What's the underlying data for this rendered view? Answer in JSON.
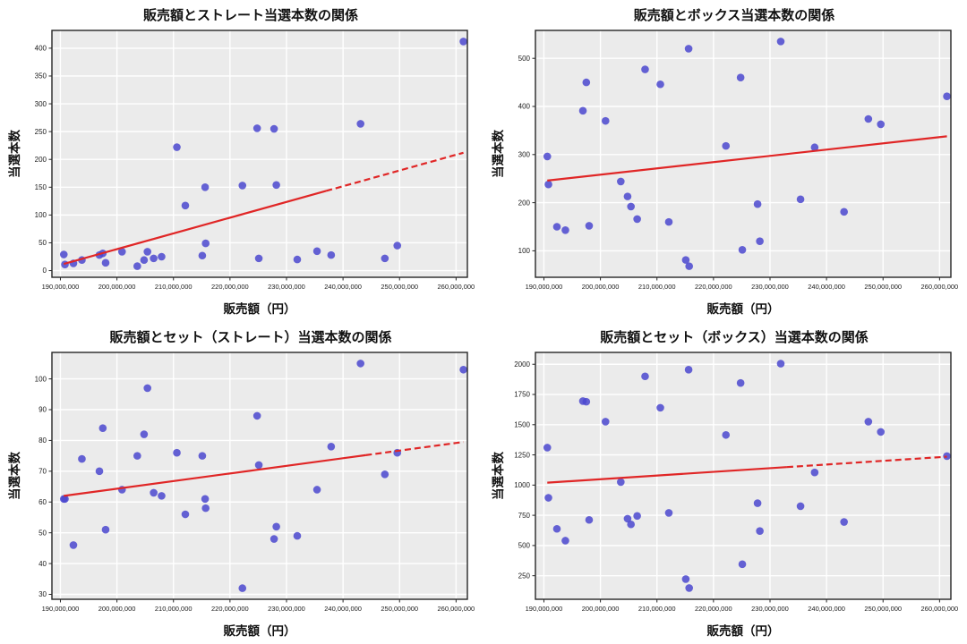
{
  "style": {
    "marker_color": "#4b48cf",
    "marker_opacity": 0.85,
    "line_color": "#e02626",
    "plot_bg": "#ebebeb",
    "grid_color": "#ffffff",
    "frame_color": "#262626",
    "text_color": "#1a1a1a"
  },
  "chart_data": [
    {
      "type": "scatter",
      "title": "販売額とストレート当選本数の関係",
      "xlabel": "販売額（円）",
      "ylabel": "当選本数",
      "x": [
        190600000,
        190800000,
        192300000,
        193800000,
        196900000,
        197500000,
        198000000,
        200900000,
        203600000,
        204800000,
        205400000,
        206500000,
        207900000,
        210600000,
        212100000,
        215100000,
        215600000,
        215700000,
        222200000,
        224800000,
        225100000,
        227800000,
        228200000,
        231900000,
        235400000,
        237900000,
        243100000,
        247400000,
        249600000,
        261300000
      ],
      "y": [
        29,
        11,
        13,
        19,
        28,
        31,
        14,
        34,
        8,
        19,
        34,
        22,
        25,
        222,
        117,
        27,
        150,
        49,
        153,
        256,
        22,
        255,
        154,
        20,
        35,
        28,
        264,
        22,
        45,
        412
      ],
      "xlim": [
        188500000,
        262000000
      ],
      "ylim": [
        -12,
        432
      ],
      "xticks": [
        190000000,
        200000000,
        210000000,
        220000000,
        230000000,
        240000000,
        250000000,
        260000000
      ],
      "yticks": [
        0,
        50,
        100,
        150,
        200,
        250,
        300,
        350,
        400
      ],
      "grid": true,
      "regression": {
        "x1": 190600000,
        "y1": 12,
        "x2": 261300000,
        "y2": 212,
        "dash_from": 237000000
      }
    },
    {
      "type": "scatter",
      "title": "販売額とボックス当選本数の関係",
      "xlabel": "販売額（円）",
      "ylabel": "当選本数",
      "x": [
        190600000,
        190800000,
        192300000,
        193800000,
        196900000,
        197500000,
        198000000,
        200900000,
        203600000,
        204800000,
        205400000,
        206500000,
        207900000,
        210600000,
        212100000,
        215100000,
        215600000,
        215700000,
        222200000,
        224800000,
        225100000,
        227800000,
        228200000,
        231900000,
        235400000,
        237900000,
        243100000,
        247400000,
        249600000,
        261300000
      ],
      "y": [
        296,
        238,
        150,
        143,
        391,
        450,
        152,
        370,
        244,
        213,
        192,
        166,
        477,
        446,
        160,
        81,
        520,
        68,
        318,
        460,
        102,
        197,
        120,
        535,
        207,
        315,
        181,
        374,
        363,
        421
      ],
      "xlim": [
        188500000,
        262000000
      ],
      "ylim": [
        45,
        558
      ],
      "xticks": [
        190000000,
        200000000,
        210000000,
        220000000,
        230000000,
        240000000,
        250000000,
        260000000
      ],
      "yticks": [
        100,
        200,
        300,
        400,
        500
      ],
      "grid": true,
      "regression": {
        "x1": 190600000,
        "y1": 246,
        "x2": 261300000,
        "y2": 338,
        "dash_from": null
      }
    },
    {
      "type": "scatter",
      "title": "販売額とセット（ストレート）当選本数の関係",
      "xlabel": "販売額（円）",
      "ylabel": "当選本数",
      "x": [
        190600000,
        190800000,
        192300000,
        193800000,
        196900000,
        197500000,
        198000000,
        200900000,
        203600000,
        204800000,
        205400000,
        206500000,
        207900000,
        210600000,
        212100000,
        215100000,
        215600000,
        215700000,
        222200000,
        224800000,
        225100000,
        227800000,
        228200000,
        231900000,
        235400000,
        237900000,
        243100000,
        247400000,
        249600000,
        261300000
      ],
      "y": [
        61,
        61,
        46,
        74,
        70,
        84,
        51,
        64,
        75,
        82,
        97,
        63,
        62,
        76,
        56,
        75,
        61,
        58,
        32,
        88,
        72,
        48,
        52,
        49,
        64,
        78,
        105,
        69,
        76,
        103
      ],
      "xlim": [
        188500000,
        262000000
      ],
      "ylim": [
        28.4,
        108.6
      ],
      "xticks": [
        190000000,
        200000000,
        210000000,
        220000000,
        230000000,
        240000000,
        250000000,
        260000000
      ],
      "yticks": [
        30,
        40,
        50,
        60,
        70,
        80,
        90,
        100
      ],
      "grid": true,
      "regression": {
        "x1": 190600000,
        "y1": 62,
        "x2": 261300000,
        "y2": 79.5,
        "dash_from": 244000000
      }
    },
    {
      "type": "scatter",
      "title": "販売額とセット（ボックス）当選本数の関係",
      "xlabel": "販売額（円）",
      "ylabel": "当選本数",
      "x": [
        190600000,
        190800000,
        192300000,
        193800000,
        196900000,
        197500000,
        198000000,
        200900000,
        203600000,
        204800000,
        205400000,
        206500000,
        207900000,
        210600000,
        212100000,
        215100000,
        215600000,
        215700000,
        222200000,
        224800000,
        225100000,
        227800000,
        228200000,
        231900000,
        235400000,
        237900000,
        243100000,
        247400000,
        249600000,
        261300000
      ],
      "y": [
        1310,
        895,
        638,
        540,
        1695,
        1690,
        712,
        1525,
        1025,
        722,
        675,
        745,
        1900,
        1640,
        770,
        222,
        1955,
        148,
        1415,
        1845,
        345,
        850,
        620,
        2005,
        825,
        1105,
        695,
        1525,
        1440,
        1240
      ],
      "xlim": [
        188500000,
        262000000
      ],
      "ylim": [
        55,
        2098
      ],
      "xticks": [
        190000000,
        200000000,
        210000000,
        220000000,
        230000000,
        240000000,
        250000000,
        260000000
      ],
      "yticks": [
        250,
        500,
        750,
        1000,
        1250,
        1500,
        1750,
        2000
      ],
      "grid": true,
      "regression": {
        "x1": 190600000,
        "y1": 1020,
        "x2": 261300000,
        "y2": 1235,
        "dash_from": 233000000
      }
    }
  ]
}
